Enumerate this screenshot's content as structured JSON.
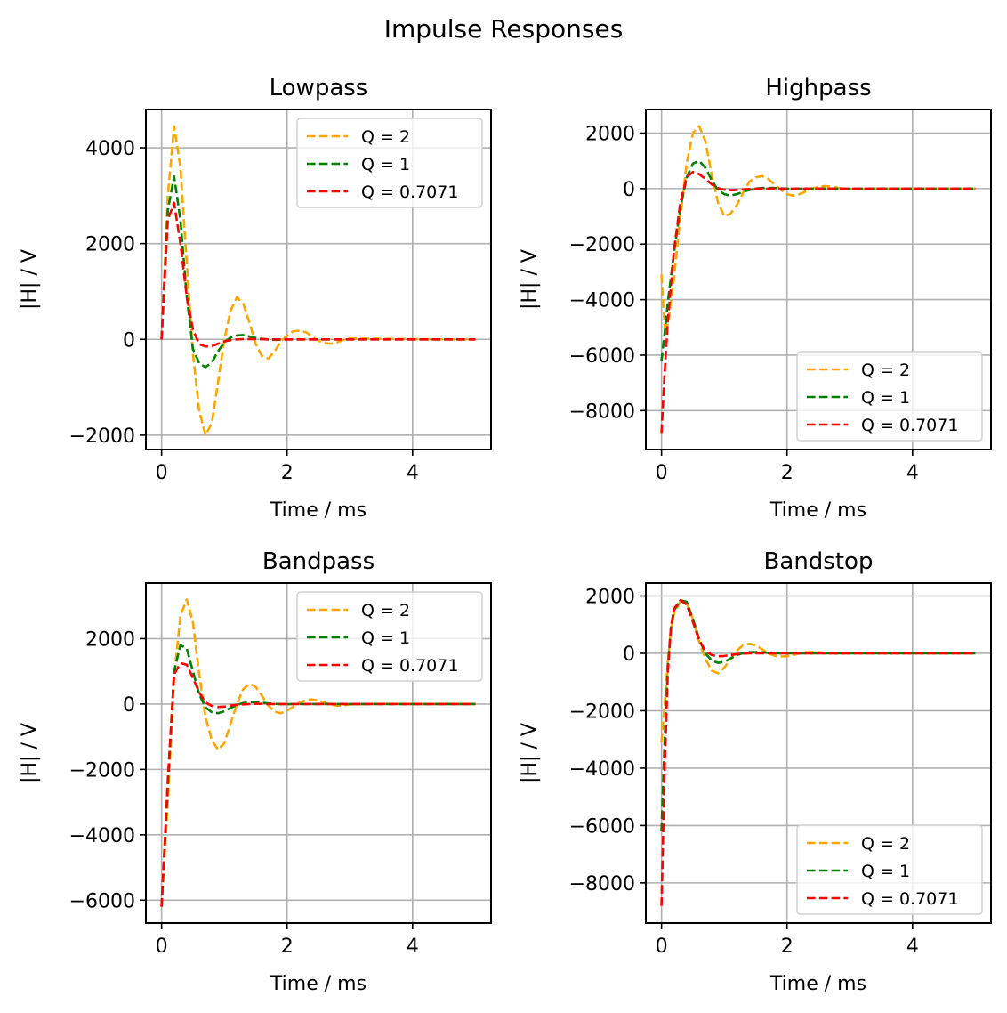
{
  "chart_data": {
    "type": "line",
    "suptitle": "Impulse Responses",
    "series_styles": [
      {
        "name": "Q = 2",
        "color": "#ffa500",
        "dash": "dashed"
      },
      {
        "name": "Q = 1",
        "color": "#008000",
        "dash": "dashed"
      },
      {
        "name": "Q = 0.7071",
        "color": "#ff0000",
        "dash": "dashed"
      }
    ],
    "subplots": [
      {
        "title": "Lowpass",
        "xlabel": "Time / ms",
        "ylabel": "|H| / V",
        "xlim": [
          -0.25,
          5.25
        ],
        "ylim": [
          -2300,
          4800
        ],
        "xticks": [
          0,
          2,
          4
        ],
        "xtick_labels": [
          "0",
          "2",
          "4"
        ],
        "yticks": [
          -2000,
          0,
          2000,
          4000
        ],
        "ytick_labels": [
          "−2000",
          "0",
          "2000",
          "4000"
        ],
        "grid": true,
        "legend_loc": "upper right",
        "x": [
          0,
          0.1,
          0.2,
          0.3,
          0.4,
          0.5,
          0.6,
          0.7,
          0.8,
          0.9,
          1.0,
          1.1,
          1.2,
          1.3,
          1.4,
          1.5,
          1.6,
          1.7,
          1.8,
          1.9,
          2.0,
          2.1,
          2.2,
          2.3,
          2.4,
          2.5,
          2.6,
          2.7,
          2.8,
          2.9,
          3.0,
          3.5,
          4.0,
          4.5,
          5.0
        ],
        "series": [
          {
            "name": "Q = 2",
            "values": [
              0,
              3000,
              4450,
              3600,
              1600,
              -300,
              -1500,
              -2000,
              -1750,
              -900,
              0,
              600,
              880,
              750,
              350,
              -100,
              -350,
              -400,
              -250,
              -50,
              80,
              170,
              180,
              150,
              60,
              -30,
              -80,
              -90,
              -60,
              -10,
              20,
              10,
              5,
              0,
              0
            ]
          },
          {
            "name": "Q = 1",
            "values": [
              0,
              2700,
              3400,
              2500,
              900,
              -200,
              -500,
              -580,
              -480,
              -250,
              -60,
              40,
              80,
              90,
              60,
              30,
              10,
              -5,
              -10,
              -8,
              -4,
              0,
              0,
              0,
              0,
              0,
              0,
              0,
              0,
              0,
              0,
              0,
              0,
              0,
              0
            ]
          },
          {
            "name": "Q = 0.7071",
            "values": [
              0,
              2500,
              2850,
              2000,
              900,
              200,
              -100,
              -150,
              -140,
              -90,
              -45,
              -15,
              0,
              5,
              6,
              4,
              2,
              0,
              0,
              0,
              0,
              0,
              0,
              0,
              0,
              0,
              0,
              0,
              0,
              0,
              0,
              0,
              0,
              0,
              0
            ]
          }
        ]
      },
      {
        "title": "Highpass",
        "xlabel": "Time / ms",
        "ylabel": "|H| / V",
        "xlim": [
          -0.25,
          5.25
        ],
        "ylim": [
          -9400,
          2850
        ],
        "xticks": [
          0,
          2,
          4
        ],
        "xtick_labels": [
          "0",
          "2",
          "4"
        ],
        "yticks": [
          -8000,
          -6000,
          -4000,
          -2000,
          0,
          2000
        ],
        "ytick_labels": [
          "−8000",
          "−6000",
          "−4000",
          "−2000",
          "0",
          "2000"
        ],
        "grid": true,
        "legend_loc": "lower right",
        "x": [
          0,
          0.05,
          0.1,
          0.2,
          0.3,
          0.4,
          0.5,
          0.6,
          0.7,
          0.8,
          0.9,
          1.0,
          1.1,
          1.2,
          1.3,
          1.4,
          1.5,
          1.6,
          1.7,
          1.8,
          1.9,
          2.0,
          2.1,
          2.2,
          2.3,
          2.4,
          2.5,
          2.6,
          2.7,
          2.8,
          2.9,
          3.0,
          3.5,
          4.0,
          4.5,
          5.0
        ],
        "series": [
          {
            "name": "Q = 2",
            "values": [
              -3100,
              -5000,
              -4900,
              -3200,
              -1000,
              900,
              2000,
              2250,
              1700,
              500,
              -500,
              -1000,
              -900,
              -600,
              -150,
              250,
              400,
              450,
              350,
              150,
              -50,
              -200,
              -250,
              -200,
              -100,
              0,
              60,
              90,
              70,
              30,
              0,
              -20,
              0,
              0,
              0,
              0
            ]
          },
          {
            "name": "Q = 1",
            "values": [
              -6200,
              -5200,
              -4100,
              -2300,
              -700,
              400,
              900,
              1000,
              750,
              300,
              -50,
              -200,
              -250,
              -200,
              -120,
              -50,
              0,
              20,
              25,
              20,
              10,
              0,
              0,
              0,
              0,
              0,
              0,
              0,
              0,
              0,
              0,
              0,
              0,
              0,
              0,
              0
            ]
          },
          {
            "name": "Q = 0.7071",
            "values": [
              -8800,
              -6600,
              -4800,
              -2200,
              -500,
              400,
              600,
              520,
              350,
              150,
              20,
              -40,
              -60,
              -50,
              -30,
              -15,
              -5,
              0,
              0,
              0,
              0,
              0,
              0,
              0,
              0,
              0,
              0,
              0,
              0,
              0,
              0,
              0,
              0,
              0,
              0,
              0
            ]
          }
        ]
      },
      {
        "title": "Bandpass",
        "xlabel": "Time / ms",
        "ylabel": "|H| / V",
        "xlim": [
          -0.25,
          5.25
        ],
        "ylim": [
          -6700,
          3700
        ],
        "xticks": [
          0,
          2,
          4
        ],
        "xtick_labels": [
          "0",
          "2",
          "4"
        ],
        "yticks": [
          -6000,
          -4000,
          -2000,
          0,
          2000
        ],
        "ytick_labels": [
          "−6000",
          "−4000",
          "−2000",
          "0",
          "2000"
        ],
        "grid": true,
        "legend_loc": "upper right",
        "x": [
          0,
          0.1,
          0.2,
          0.3,
          0.4,
          0.5,
          0.6,
          0.7,
          0.8,
          0.9,
          1.0,
          1.1,
          1.2,
          1.3,
          1.4,
          1.5,
          1.6,
          1.7,
          1.8,
          1.9,
          2.0,
          2.1,
          2.2,
          2.3,
          2.4,
          2.5,
          2.6,
          2.7,
          2.8,
          2.9,
          3.0,
          3.5,
          4.0,
          4.5,
          5.0
        ],
        "series": [
          {
            "name": "Q = 2",
            "values": [
              -6200,
              -3000,
              800,
              2700,
              3200,
              2500,
              900,
              -400,
              -1100,
              -1400,
              -1200,
              -600,
              0,
              450,
              620,
              520,
              250,
              -50,
              -230,
              -280,
              -200,
              -80,
              40,
              120,
              140,
              110,
              40,
              -20,
              -50,
              -40,
              -10,
              5,
              0,
              0,
              0
            ]
          },
          {
            "name": "Q = 1",
            "values": [
              -6200,
              -2500,
              1000,
              1800,
              1700,
              1000,
              300,
              -100,
              -250,
              -280,
              -220,
              -120,
              -30,
              30,
              60,
              55,
              40,
              20,
              5,
              -5,
              -5,
              0,
              0,
              0,
              0,
              0,
              0,
              0,
              0,
              0,
              0,
              0,
              0,
              0,
              0
            ]
          },
          {
            "name": "Q = 0.7071",
            "values": [
              -6200,
              -2300,
              900,
              1250,
              1200,
              800,
              350,
              50,
              -60,
              -90,
              -80,
              -50,
              -25,
              -10,
              0,
              5,
              5,
              0,
              0,
              0,
              0,
              0,
              0,
              0,
              0,
              0,
              0,
              0,
              0,
              0,
              0,
              0,
              0,
              0,
              0
            ]
          }
        ]
      },
      {
        "title": "Bandstop",
        "xlabel": "Time / ms",
        "ylabel": "|H| / V",
        "xlim": [
          -0.25,
          5.25
        ],
        "ylim": [
          -9400,
          2450
        ],
        "xticks": [
          0,
          2,
          4
        ],
        "xtick_labels": [
          "0",
          "2",
          "4"
        ],
        "yticks": [
          -8000,
          -6000,
          -4000,
          -2000,
          0,
          2000
        ],
        "ytick_labels": [
          "−8000",
          "−6000",
          "−4000",
          "−2000",
          "0",
          "2000"
        ],
        "grid": true,
        "legend_loc": "lower right",
        "x": [
          0,
          0.05,
          0.1,
          0.15,
          0.2,
          0.3,
          0.4,
          0.5,
          0.6,
          0.7,
          0.8,
          0.9,
          1.0,
          1.1,
          1.2,
          1.3,
          1.4,
          1.5,
          1.6,
          1.7,
          1.8,
          1.9,
          2.0,
          2.1,
          2.2,
          2.3,
          2.4,
          2.5,
          2.6,
          2.7,
          2.8,
          3.0,
          3.5,
          4.0,
          4.5,
          5.0
        ],
        "series": [
          {
            "name": "Q = 2",
            "values": [
              -3100,
              -1800,
              -300,
              800,
              1400,
              1800,
              1750,
              1200,
              400,
              -200,
              -600,
              -700,
              -500,
              -200,
              100,
              280,
              330,
              280,
              150,
              0,
              -80,
              -110,
              -100,
              -60,
              0,
              40,
              50,
              40,
              20,
              0,
              -10,
              0,
              0,
              0,
              0,
              0
            ]
          },
          {
            "name": "Q = 1",
            "values": [
              -6200,
              -3000,
              -500,
              900,
              1500,
              1850,
              1800,
              1200,
              500,
              0,
              -250,
              -330,
              -300,
              -180,
              -60,
              10,
              40,
              45,
              35,
              20,
              5,
              0,
              0,
              0,
              0,
              0,
              0,
              0,
              0,
              0,
              0,
              0,
              0,
              0,
              0,
              0
            ]
          },
          {
            "name": "Q = 0.7071",
            "values": [
              -8800,
              -4000,
              -700,
              900,
              1550,
              1850,
              1700,
              1100,
              450,
              80,
              -60,
              -100,
              -90,
              -60,
              -30,
              -10,
              0,
              0,
              0,
              0,
              0,
              0,
              0,
              0,
              0,
              0,
              0,
              0,
              0,
              0,
              0,
              0,
              0,
              0,
              0,
              0
            ]
          }
        ]
      }
    ]
  }
}
